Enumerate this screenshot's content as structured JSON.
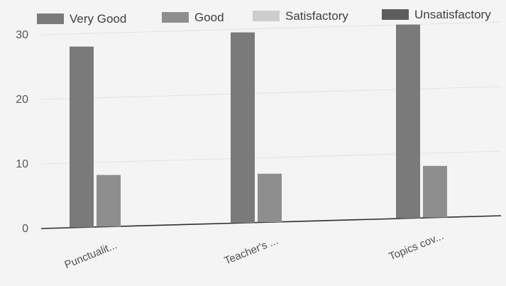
{
  "chart_data": {
    "type": "bar",
    "categories": [
      "Punctualit...",
      "Teacher's ...",
      "Topics cov..."
    ],
    "series": [
      {
        "name": "Very Good",
        "values": [
          28,
          29.5,
          30
        ],
        "color": "#7a7a7a"
      },
      {
        "name": "Good",
        "values": [
          8,
          7.5,
          8
        ],
        "color": "#8e8e8e"
      },
      {
        "name": "Satisfactory",
        "values": [
          0,
          0,
          0
        ],
        "color": "#cdcdcd"
      },
      {
        "name": "Unsatisfactory",
        "values": [
          0,
          0,
          0
        ],
        "color": "#5e5e5e"
      }
    ],
    "yticks": [
      0,
      10,
      20,
      30
    ],
    "ylim": [
      0,
      34
    ],
    "title": "",
    "xlabel": "",
    "ylabel": "",
    "grid": true,
    "legend_position": "top"
  }
}
